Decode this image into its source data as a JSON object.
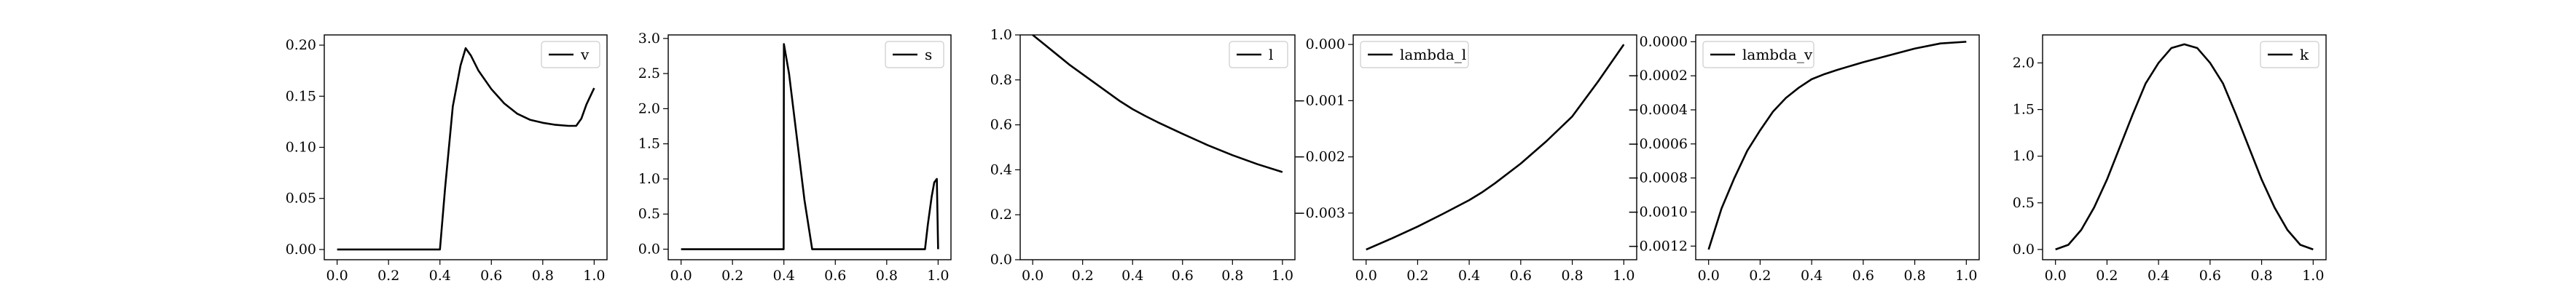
{
  "chart_data": [
    {
      "type": "line",
      "legend": "v",
      "legend_position": "top-right",
      "xlim": [
        -0.05,
        1.05
      ],
      "ylim": [
        -0.01,
        0.21
      ],
      "xticks": [
        "0.0",
        "0.2",
        "0.4",
        "0.6",
        "0.8",
        "1.0"
      ],
      "xtick_values": [
        0.0,
        0.2,
        0.4,
        0.6,
        0.8,
        1.0
      ],
      "yticks": [
        "0.00",
        "0.05",
        "0.10",
        "0.15",
        "0.20"
      ],
      "ytick_values": [
        0.0,
        0.05,
        0.1,
        0.15,
        0.2
      ],
      "x": [
        0.0,
        0.1,
        0.2,
        0.3,
        0.4,
        0.42,
        0.45,
        0.48,
        0.5,
        0.52,
        0.55,
        0.6,
        0.65,
        0.7,
        0.75,
        0.8,
        0.85,
        0.9,
        0.93,
        0.95,
        0.97,
        1.0
      ],
      "y": [
        0.0,
        0.0,
        0.0,
        0.0,
        0.0,
        0.06,
        0.14,
        0.18,
        0.197,
        0.19,
        0.175,
        0.157,
        0.143,
        0.133,
        0.127,
        0.124,
        0.122,
        0.121,
        0.121,
        0.128,
        0.142,
        0.158
      ]
    },
    {
      "type": "line",
      "legend": "s",
      "legend_position": "top-right",
      "xlim": [
        -0.05,
        1.05
      ],
      "ylim": [
        -0.15,
        3.05
      ],
      "xticks": [
        "0.0",
        "0.2",
        "0.4",
        "0.6",
        "0.8",
        "1.0"
      ],
      "xtick_values": [
        0.0,
        0.2,
        0.4,
        0.6,
        0.8,
        1.0
      ],
      "yticks": [
        "0.0",
        "0.5",
        "1.0",
        "1.5",
        "2.0",
        "2.5",
        "3.0"
      ],
      "ytick_values": [
        0.0,
        0.5,
        1.0,
        1.5,
        2.0,
        2.5,
        3.0
      ],
      "x": [
        0.0,
        0.1,
        0.2,
        0.3,
        0.399,
        0.4,
        0.42,
        0.45,
        0.48,
        0.51,
        0.6,
        0.7,
        0.8,
        0.9,
        0.949,
        0.96,
        0.975,
        0.985,
        0.995,
        1.0
      ],
      "y": [
        0.0,
        0.0,
        0.0,
        0.0,
        0.0,
        2.92,
        2.5,
        1.6,
        0.7,
        0.0,
        0.0,
        0.0,
        0.0,
        0.0,
        0.0,
        0.35,
        0.75,
        0.95,
        1.0,
        0.0
      ]
    },
    {
      "type": "line",
      "legend": "l",
      "legend_position": "top-right",
      "xlim": [
        -0.05,
        1.05
      ],
      "ylim": [
        0.0,
        1.0
      ],
      "xticks": [
        "0.0",
        "0.2",
        "0.4",
        "0.6",
        "0.8",
        "1.0"
      ],
      "xtick_values": [
        0.0,
        0.2,
        0.4,
        0.6,
        0.8,
        1.0
      ],
      "yticks": [
        "0.0",
        "0.2",
        "0.4",
        "0.6",
        "0.8",
        "1.0"
      ],
      "ytick_values": [
        0.0,
        0.2,
        0.4,
        0.6,
        0.8,
        1.0
      ],
      "x": [
        0.0,
        0.05,
        0.1,
        0.15,
        0.2,
        0.25,
        0.3,
        0.35,
        0.4,
        0.45,
        0.5,
        0.6,
        0.7,
        0.8,
        0.9,
        1.0
      ],
      "y": [
        1.0,
        0.955,
        0.91,
        0.865,
        0.825,
        0.785,
        0.745,
        0.705,
        0.67,
        0.64,
        0.612,
        0.56,
        0.51,
        0.465,
        0.425,
        0.39
      ]
    },
    {
      "type": "line",
      "legend": "lambda_l",
      "legend_position": "top-left",
      "xlim": [
        -0.05,
        1.05
      ],
      "ylim": [
        -0.00383,
        0.00017
      ],
      "xticks": [
        "0.0",
        "0.2",
        "0.4",
        "0.6",
        "0.8",
        "1.0"
      ],
      "xtick_values": [
        0.0,
        0.2,
        0.4,
        0.6,
        0.8,
        1.0
      ],
      "yticks": [
        "0.000",
        "−0.001",
        "−0.002",
        "−0.003"
      ],
      "ytick_values": [
        0.0,
        -0.001,
        -0.002,
        -0.003
      ],
      "x": [
        0.0,
        0.1,
        0.2,
        0.3,
        0.4,
        0.45,
        0.5,
        0.6,
        0.7,
        0.8,
        0.9,
        1.0
      ],
      "y": [
        -0.00365,
        -0.00345,
        -0.00324,
        -0.00301,
        -0.00277,
        -0.00263,
        -0.00247,
        -0.00212,
        -0.00172,
        -0.00128,
        -0.00066,
        0.0
      ]
    },
    {
      "type": "line",
      "legend": "lambda_v",
      "legend_position": "top-left",
      "xlim": [
        -0.05,
        1.05
      ],
      "ylim": [
        -0.00128,
        4e-05
      ],
      "xticks": [
        "0.0",
        "0.2",
        "0.4",
        "0.6",
        "0.8",
        "1.0"
      ],
      "xtick_values": [
        0.0,
        0.2,
        0.4,
        0.6,
        0.8,
        1.0
      ],
      "yticks": [
        "0.0000",
        "−0.0002",
        "−0.0004",
        "−0.0006",
        "−0.0008",
        "−0.0010",
        "−0.0012"
      ],
      "ytick_values": [
        0.0,
        -0.0002,
        -0.0004,
        -0.0006,
        -0.0008,
        -0.001,
        -0.0012
      ],
      "x": [
        0.0,
        0.05,
        0.1,
        0.15,
        0.2,
        0.25,
        0.3,
        0.35,
        0.4,
        0.45,
        0.5,
        0.6,
        0.7,
        0.8,
        0.9,
        1.0
      ],
      "y": [
        -0.00122,
        -0.00098,
        -0.0008,
        -0.00064,
        -0.00052,
        -0.00041,
        -0.00033,
        -0.00027,
        -0.00022,
        -0.00019,
        -0.000165,
        -0.00012,
        -8e-05,
        -4e-05,
        -1e-05,
        0.0
      ]
    },
    {
      "type": "line",
      "legend": "k",
      "legend_position": "top-right",
      "xlim": [
        -0.05,
        1.05
      ],
      "ylim": [
        -0.11,
        2.3
      ],
      "xticks": [
        "0.0",
        "0.2",
        "0.4",
        "0.6",
        "0.8",
        "1.0"
      ],
      "xtick_values": [
        0.0,
        0.2,
        0.4,
        0.6,
        0.8,
        1.0
      ],
      "yticks": [
        "0.0",
        "0.5",
        "1.0",
        "1.5",
        "2.0"
      ],
      "ytick_values": [
        0.0,
        0.5,
        1.0,
        1.5,
        2.0
      ],
      "x": [
        0.0,
        0.05,
        0.1,
        0.15,
        0.2,
        0.25,
        0.3,
        0.35,
        0.4,
        0.45,
        0.5,
        0.55,
        0.6,
        0.65,
        0.7,
        0.75,
        0.8,
        0.85,
        0.9,
        0.95,
        1.0
      ],
      "y": [
        0.0,
        0.05,
        0.21,
        0.45,
        0.75,
        1.1,
        1.45,
        1.78,
        2.0,
        2.16,
        2.2,
        2.16,
        2.0,
        1.78,
        1.45,
        1.1,
        0.75,
        0.45,
        0.21,
        0.05,
        0.0
      ]
    }
  ]
}
